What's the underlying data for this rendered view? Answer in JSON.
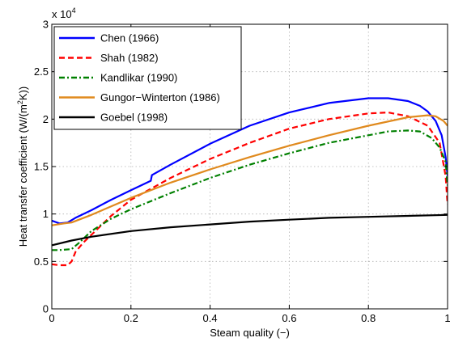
{
  "chart_data": {
    "type": "line",
    "xlabel": "Steam quality (−)",
    "ylabel": "Heat transfer coefficient (W/(m²K))",
    "exponent_label": "x 10",
    "exponent_power": "4",
    "xlim": [
      0,
      1
    ],
    "ylim": [
      0,
      3
    ],
    "xticks": [
      0,
      0.2,
      0.4,
      0.6,
      0.8,
      1
    ],
    "xtick_labels": [
      "0",
      "0.2",
      "0.4",
      "0.6",
      "0.8",
      "1"
    ],
    "yticks": [
      0,
      0.5,
      1,
      1.5,
      2,
      2.5,
      3
    ],
    "ytick_labels": [
      "0",
      "0.5",
      "1",
      "1.5",
      "2",
      "2.5",
      "3"
    ],
    "grid": true,
    "legend_position": "top-left",
    "series": [
      {
        "name": "Chen (1966)",
        "color": "#0000ff",
        "dash": "solid",
        "x": [
          0,
          0.02,
          0.04,
          0.06,
          0.1,
          0.15,
          0.2,
          0.25,
          0.253,
          0.3,
          0.4,
          0.5,
          0.6,
          0.7,
          0.8,
          0.85,
          0.9,
          0.93,
          0.95,
          0.97,
          0.985,
          0.995,
          1.0
        ],
        "values": [
          0.93,
          0.9,
          0.91,
          0.96,
          1.04,
          1.15,
          1.25,
          1.35,
          1.41,
          1.52,
          1.74,
          1.93,
          2.07,
          2.17,
          2.22,
          2.22,
          2.19,
          2.14,
          2.08,
          1.98,
          1.83,
          1.6,
          1.4
        ]
      },
      {
        "name": "Shah (1982)",
        "color": "#ff0000",
        "dash": "dashed",
        "x": [
          0,
          0.02,
          0.04,
          0.05,
          0.06,
          0.08,
          0.1,
          0.15,
          0.2,
          0.3,
          0.4,
          0.5,
          0.6,
          0.7,
          0.8,
          0.85,
          0.9,
          0.95,
          0.98,
          0.995,
          1.0
        ],
        "values": [
          0.47,
          0.46,
          0.46,
          0.5,
          0.6,
          0.7,
          0.78,
          0.98,
          1.15,
          1.38,
          1.58,
          1.75,
          1.9,
          2.0,
          2.06,
          2.07,
          2.03,
          1.93,
          1.75,
          1.4,
          1.1
        ]
      },
      {
        "name": "Kandlikar (1990)",
        "color": "#008000",
        "dash": "dashdot",
        "x": [
          0,
          0.02,
          0.05,
          0.07,
          0.1,
          0.15,
          0.2,
          0.3,
          0.4,
          0.5,
          0.6,
          0.7,
          0.8,
          0.85,
          0.9,
          0.93,
          0.96,
          0.98,
          0.995,
          1.0
        ],
        "values": [
          0.62,
          0.62,
          0.63,
          0.7,
          0.82,
          0.95,
          1.05,
          1.22,
          1.38,
          1.52,
          1.64,
          1.75,
          1.83,
          1.87,
          1.88,
          1.87,
          1.8,
          1.7,
          1.55,
          1.3
        ]
      },
      {
        "name": "Gungor−Winterton (1986)",
        "color": "#e08a1e",
        "dash": "solid",
        "x": [
          0,
          0.03,
          0.05,
          0.1,
          0.15,
          0.2,
          0.3,
          0.4,
          0.5,
          0.6,
          0.7,
          0.8,
          0.9,
          0.95,
          0.97,
          0.99,
          1.0
        ],
        "values": [
          0.88,
          0.9,
          0.91,
          0.99,
          1.08,
          1.17,
          1.33,
          1.47,
          1.6,
          1.72,
          1.83,
          1.93,
          2.02,
          2.04,
          2.03,
          1.98,
          1.93
        ]
      },
      {
        "name": "Goebel (1998)",
        "color": "#000000",
        "dash": "solid",
        "x": [
          0,
          0.05,
          0.1,
          0.2,
          0.3,
          0.4,
          0.5,
          0.6,
          0.7,
          0.8,
          0.9,
          1.0
        ],
        "values": [
          0.67,
          0.72,
          0.76,
          0.82,
          0.86,
          0.89,
          0.92,
          0.94,
          0.96,
          0.97,
          0.98,
          0.99
        ]
      }
    ]
  }
}
